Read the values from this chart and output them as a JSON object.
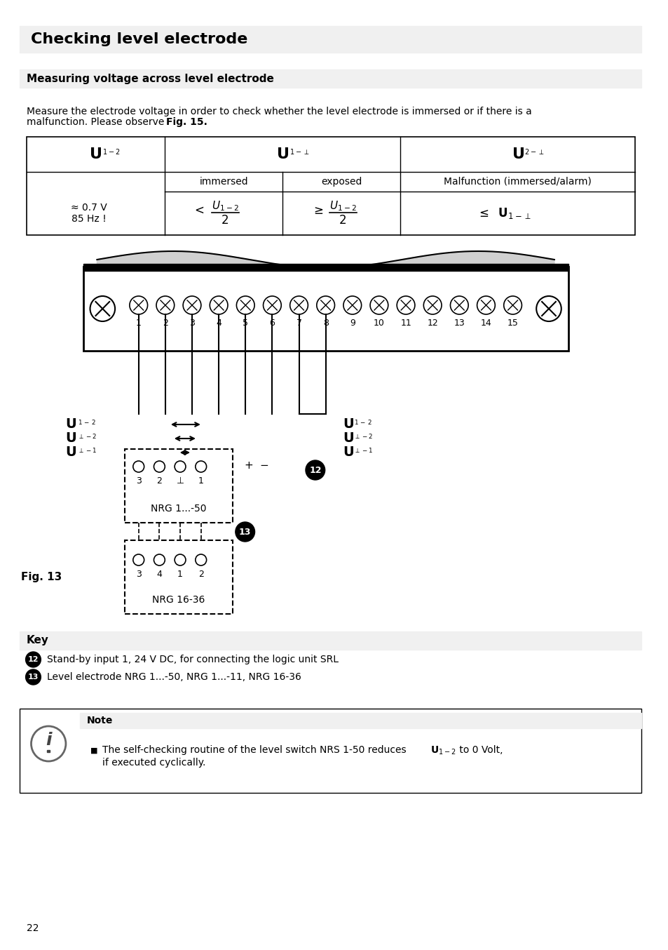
{
  "title": "Checking level electrode",
  "subtitle": "Measuring voltage across level electrode",
  "body_text": "Measure the electrode voltage in order to check whether the level electrode is immersed or if there is a\nmalfunction. Please observe Fig. 15.",
  "table": {
    "col1_header": "U",
    "col1_sub1": "1-2",
    "col2_header": "U",
    "col2_sub1": "1-⊥",
    "col3_header": "U",
    "col3_sub1": "2-⊥",
    "row2_col2a": "immersed",
    "row2_col2b": "exposed",
    "row2_col3": "Malfunction (immersed/alarm)",
    "row3_col1a": "≈ 0.7 V",
    "row3_col1b": "85 Hz !",
    "row3_col2a": "U",
    "row3_col2a_sub": "1-2",
    "row3_col2b": "U",
    "row3_col2b_sub": "1-2"
  },
  "key_title": "Key",
  "key_12": "Stand-by input 1, 24 V DC, for connecting the logic unit SRL",
  "key_13": "Level electrode NRG 1...-50, NRG 1...-11, NRG 16-36",
  "note_title": "Note",
  "note_text": "The self-checking routine of the level switch NRS 1-50 reduces U",
  "note_text2": "  to 0 Volt,\nif executed cyclically.",
  "note_u_sub": "1-2",
  "fig_label": "Fig. 13",
  "bg_color": "#f0f0f0",
  "white": "#ffffff",
  "black": "#000000",
  "page_num": "22"
}
